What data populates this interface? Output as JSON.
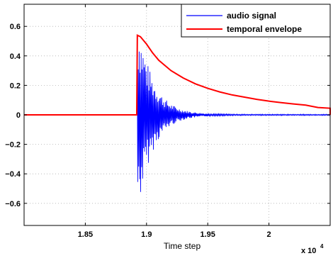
{
  "chart_data": {
    "type": "line",
    "xlabel": "Time step",
    "ylabel": "",
    "x_multiplier_label": "x 10",
    "x_multiplier_exponent": "4",
    "xlim": [
      1.8,
      2.05
    ],
    "ylim": [
      -0.75,
      0.75
    ],
    "x_ticks": [
      1.85,
      1.9,
      1.95,
      2.0
    ],
    "x_tick_labels": [
      "1.85",
      "1.9",
      "1.95",
      "2"
    ],
    "y_ticks": [
      -0.6,
      -0.4,
      -0.2,
      0,
      0.2,
      0.4,
      0.6
    ],
    "y_tick_labels": [
      "−0.6",
      "−0.4",
      "−0.2",
      "0",
      "0.2",
      "0.4",
      "0.6"
    ],
    "grid": true,
    "legend_position": "top-right",
    "series": [
      {
        "name": "audio signal",
        "color": "#0000ff",
        "description_points": {
          "onset_x": 1.8924,
          "peak_positive": 0.58,
          "peak_negative": -0.66,
          "decay_until_x": 1.99
        }
      },
      {
        "name": "temporal envelope",
        "color": "#ff0000",
        "x": [
          1.8,
          1.892,
          1.8925,
          1.895,
          1.9,
          1.905,
          1.91,
          1.92,
          1.93,
          1.94,
          1.95,
          1.96,
          1.97,
          1.98,
          1.99,
          2.0,
          2.01,
          2.02,
          2.03,
          2.04,
          2.05
        ],
        "y": [
          0,
          0,
          0.54,
          0.53,
          0.48,
          0.42,
          0.37,
          0.3,
          0.25,
          0.21,
          0.18,
          0.155,
          0.135,
          0.12,
          0.105,
          0.093,
          0.083,
          0.074,
          0.066,
          0.05,
          0.045
        ]
      }
    ]
  }
}
